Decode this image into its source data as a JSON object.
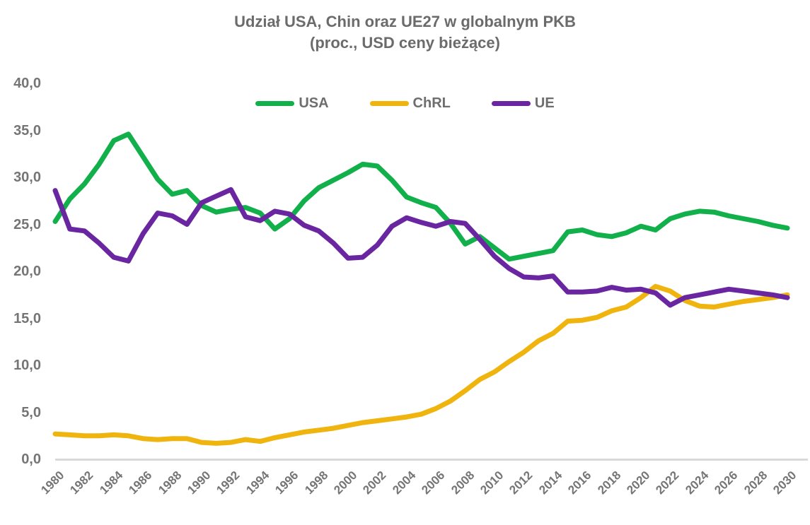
{
  "title": {
    "line1": "Udział USA, Chin oraz UE27 w globalnym PKB",
    "line2": "(proc., USD ceny bieżące)"
  },
  "legend": {
    "items": [
      {
        "label": "USA",
        "color": "#12b04b"
      },
      {
        "label": "ChRL",
        "color": "#f0b40f"
      },
      {
        "label": "UE",
        "color": "#6a26a1"
      }
    ]
  },
  "colors": {
    "title_text": "#6b6b6b",
    "axis_text": "#757575",
    "axis_line": "#d9d9d9",
    "usa": "#12b04b",
    "chrl": "#f0b40f",
    "ue": "#6a26a1"
  },
  "chart_data": {
    "type": "line",
    "title": "Udział USA, Chin oraz UE27 w globalnym PKB (proc., USD ceny bieżące)",
    "xlabel": "",
    "ylabel": "",
    "ylim": [
      0,
      40
    ],
    "ytick_step": 5,
    "xtick_step": 2,
    "grid": false,
    "legend_position": "top",
    "decimal_separator": ",",
    "x": [
      1980,
      1981,
      1982,
      1983,
      1984,
      1985,
      1986,
      1987,
      1988,
      1989,
      1990,
      1991,
      1992,
      1993,
      1994,
      1995,
      1996,
      1997,
      1998,
      1999,
      2000,
      2001,
      2002,
      2003,
      2004,
      2005,
      2006,
      2007,
      2008,
      2009,
      2010,
      2011,
      2012,
      2013,
      2014,
      2015,
      2016,
      2017,
      2018,
      2019,
      2020,
      2021,
      2022,
      2023,
      2024,
      2025,
      2026,
      2027,
      2028,
      2029,
      2030
    ],
    "series": [
      {
        "name": "USA",
        "color": "#12b04b",
        "values": [
          25.3,
          27.7,
          29.3,
          31.4,
          33.9,
          34.6,
          32.2,
          29.8,
          28.2,
          28.6,
          27.0,
          26.3,
          26.6,
          26.8,
          26.2,
          24.5,
          25.6,
          27.5,
          28.9,
          29.7,
          30.5,
          31.4,
          31.2,
          29.7,
          27.9,
          27.3,
          26.8,
          25.1,
          22.9,
          23.7,
          22.5,
          21.3,
          21.6,
          21.9,
          22.2,
          24.2,
          24.4,
          23.9,
          23.7,
          24.1,
          24.8,
          24.4,
          25.6,
          26.1,
          26.4,
          26.3,
          25.9,
          25.6,
          25.3,
          24.9,
          24.6
        ]
      },
      {
        "name": "ChRL",
        "color": "#f0b40f",
        "values": [
          2.7,
          2.6,
          2.5,
          2.5,
          2.6,
          2.5,
          2.2,
          2.1,
          2.2,
          2.2,
          1.8,
          1.7,
          1.8,
          2.1,
          1.9,
          2.3,
          2.6,
          2.9,
          3.1,
          3.3,
          3.6,
          3.9,
          4.1,
          4.3,
          4.5,
          4.8,
          5.4,
          6.2,
          7.3,
          8.5,
          9.3,
          10.4,
          11.4,
          12.6,
          13.4,
          14.7,
          14.8,
          15.1,
          15.8,
          16.2,
          17.2,
          18.4,
          17.9,
          16.9,
          16.3,
          16.2,
          16.5,
          16.8,
          17.0,
          17.2,
          17.5
        ]
      },
      {
        "name": "UE",
        "color": "#6a26a1",
        "values": [
          28.6,
          24.5,
          24.3,
          23.0,
          21.5,
          21.1,
          24.0,
          26.2,
          25.9,
          25.0,
          27.3,
          28.0,
          28.7,
          25.8,
          25.4,
          26.4,
          26.1,
          24.9,
          24.3,
          23.0,
          21.4,
          21.5,
          22.8,
          24.8,
          25.7,
          25.2,
          24.8,
          25.3,
          25.1,
          23.4,
          21.6,
          20.3,
          19.4,
          19.3,
          19.5,
          17.8,
          17.8,
          17.9,
          18.3,
          18.0,
          18.1,
          17.7,
          16.4,
          17.2,
          17.5,
          17.8,
          18.1,
          17.9,
          17.7,
          17.5,
          17.2
        ]
      }
    ]
  }
}
